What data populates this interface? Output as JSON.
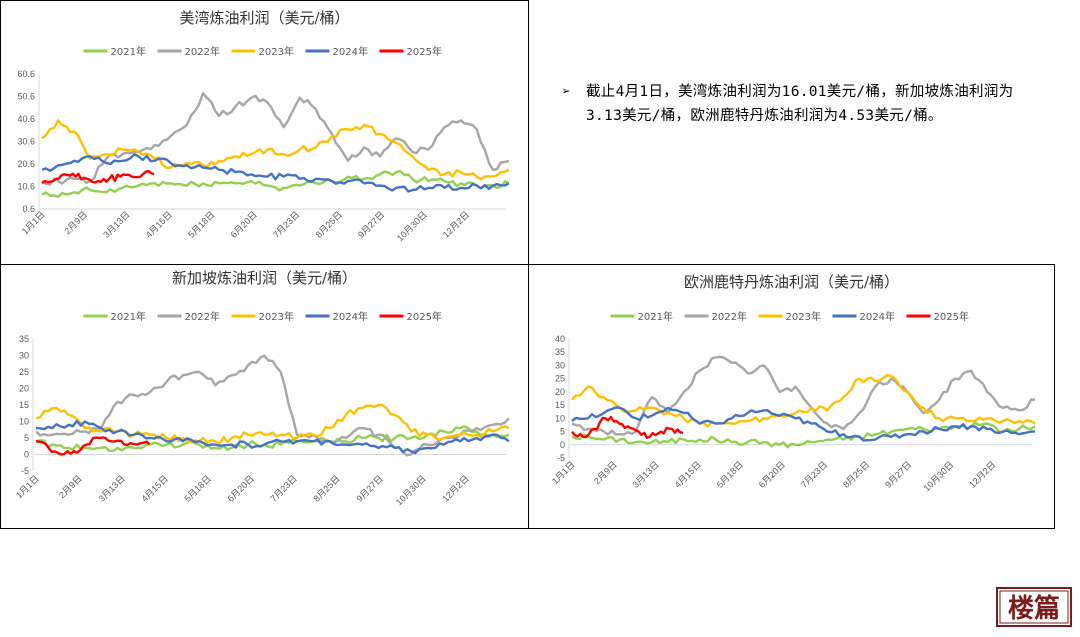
{
  "note": {
    "bullet": "➢",
    "text": "截止4月1日，美湾炼油利润为16.01美元/桶，新加坡炼油利润为3.13美元/桶，欧洲鹿特丹炼油利润为4.53美元/桶。"
  },
  "logo": {
    "text": "楼篇"
  },
  "chart_data": [
    {
      "id": "us",
      "type": "line",
      "title": "美湾炼油利润（美元/桶）",
      "x_tick_labels": [
        "1月1日",
        "2月9日",
        "3月13日",
        "4月15日",
        "5月18日",
        "6月20日",
        "7月23日",
        "8月25日",
        "9月27日",
        "10月30日",
        "12月2日"
      ],
      "y_ticks": [
        "0.6",
        "10.6",
        "20.6",
        "30.6",
        "40.6",
        "50.6",
        "60.6"
      ],
      "ylim": [
        0.6,
        60.6
      ],
      "series": [
        {
          "name": "2021年",
          "color": "#92D050",
          "values": [
            7,
            6,
            8,
            9,
            8,
            10,
            11,
            12,
            12,
            11,
            12,
            12,
            12,
            13,
            11,
            10,
            11,
            12,
            13,
            15,
            14,
            16,
            17,
            14,
            13,
            13,
            12,
            11,
            11,
            12
          ]
        },
        {
          "name": "2022年",
          "color": "#A6A6A6",
          "values": [
            13,
            13,
            14,
            13,
            23,
            25,
            26,
            29,
            33,
            38,
            52,
            42,
            46,
            50,
            48,
            37,
            50,
            45,
            34,
            22,
            28,
            24,
            32,
            26,
            27,
            37,
            40,
            36,
            18,
            22
          ]
        },
        {
          "name": "2023年",
          "color": "#FFC000",
          "values": [
            32,
            40,
            35,
            23,
            25,
            27,
            26,
            23,
            19,
            21,
            20,
            22,
            24,
            25,
            27,
            25,
            27,
            28,
            33,
            36,
            38,
            34,
            30,
            24,
            18,
            16,
            17,
            15,
            15,
            18
          ]
        },
        {
          "name": "2024年",
          "color": "#4472C4",
          "values": [
            18,
            20,
            22,
            24,
            21,
            22,
            24,
            22,
            21,
            20,
            19,
            18,
            17,
            16,
            15,
            15,
            14,
            14,
            13,
            13,
            12,
            11,
            10,
            9,
            10,
            10,
            10,
            11,
            11,
            12
          ]
        },
        {
          "name": "2025年",
          "color": "#FF0000",
          "values": [
            12,
            13,
            16,
            15,
            14,
            13,
            14,
            15,
            15,
            16,
            16.01
          ]
        }
      ]
    },
    {
      "id": "sg",
      "type": "line",
      "title": "新加坡炼油利润（美元/桶）",
      "x_tick_labels": [
        "1月1日",
        "2月9日",
        "3月13日",
        "4月15日",
        "5月18日",
        "6月20日",
        "7月23日",
        "8月25日",
        "9月27日",
        "10月30日",
        "12月2日"
      ],
      "y_ticks": [
        "-5",
        "0",
        "5",
        "10",
        "15",
        "20",
        "25",
        "30",
        "35"
      ],
      "ylim": [
        -5,
        35
      ],
      "series": [
        {
          "name": "2021年",
          "color": "#92D050",
          "values": [
            4,
            3,
            2,
            2,
            2,
            2,
            2,
            3,
            3,
            3,
            3,
            2,
            2,
            3,
            3,
            3,
            4,
            4,
            4,
            4,
            5,
            5,
            5,
            5,
            6,
            7,
            8,
            7,
            6,
            6
          ]
        },
        {
          "name": "2022年",
          "color": "#A6A6A6",
          "values": [
            7,
            6,
            6,
            7,
            8,
            16,
            18,
            19,
            22,
            24,
            25,
            21,
            24,
            27,
            30,
            25,
            6,
            6,
            4,
            5,
            8,
            6,
            2,
            0,
            3,
            5,
            6,
            8,
            9,
            11
          ]
        },
        {
          "name": "2023年",
          "color": "#FFC000",
          "values": [
            11,
            14,
            12,
            8,
            7,
            7,
            6,
            6,
            5,
            5,
            4,
            4,
            5,
            6,
            6,
            6,
            5,
            6,
            8,
            12,
            14,
            15,
            12,
            7,
            6,
            5,
            6,
            6,
            7,
            8
          ]
        },
        {
          "name": "2024年",
          "color": "#4472C4",
          "values": [
            8,
            8,
            9,
            10,
            8,
            7,
            6,
            5,
            4,
            4,
            4,
            3,
            3,
            3,
            3,
            4,
            4,
            4,
            4,
            3,
            3,
            2,
            2,
            1,
            2,
            3,
            4,
            5,
            6,
            4
          ]
        },
        {
          "name": "2025年",
          "color": "#FF0000",
          "values": [
            4,
            2,
            0,
            1,
            3,
            5,
            4,
            3,
            3,
            3.13
          ]
        }
      ]
    },
    {
      "id": "eu",
      "type": "line",
      "title": "欧洲鹿特丹炼油利润（美元/桶）",
      "x_tick_labels": [
        "1月1日",
        "2月9日",
        "3月13日",
        "4月15日",
        "5月18日",
        "6月20日",
        "7月23日",
        "8月25日",
        "9月27日",
        "10月30日",
        "12月2日"
      ],
      "y_ticks": [
        "-5",
        "0",
        "5",
        "10",
        "15",
        "20",
        "25",
        "30",
        "35",
        "40"
      ],
      "ylim": [
        -5,
        40
      ],
      "series": [
        {
          "name": "2021年",
          "color": "#92D050",
          "values": [
            3,
            3,
            2,
            2,
            1,
            1,
            1,
            2,
            2,
            2,
            1,
            1,
            1,
            0,
            0,
            1,
            2,
            2,
            3,
            4,
            5,
            6,
            6,
            6,
            7,
            7,
            8,
            5,
            6,
            7
          ]
        },
        {
          "name": "2022年",
          "color": "#A6A6A6",
          "values": [
            8,
            6,
            5,
            4,
            5,
            18,
            12,
            20,
            28,
            33,
            31,
            27,
            30,
            20,
            22,
            14,
            8,
            6,
            12,
            22,
            25,
            20,
            12,
            17,
            25,
            28,
            20,
            14,
            13,
            17
          ]
        },
        {
          "name": "2023年",
          "color": "#FFC000",
          "values": [
            17,
            22,
            18,
            14,
            13,
            14,
            12,
            10,
            8,
            8,
            8,
            9,
            10,
            11,
            12,
            14,
            13,
            18,
            25,
            24,
            26,
            20,
            14,
            10,
            10,
            9,
            10,
            9,
            9,
            8
          ]
        },
        {
          "name": "2024年",
          "color": "#4472C4",
          "values": [
            9,
            10,
            12,
            14,
            10,
            11,
            14,
            12,
            8,
            8,
            10,
            12,
            13,
            11,
            10,
            8,
            5,
            4,
            3,
            2,
            3,
            4,
            5,
            6,
            7,
            7,
            6,
            5,
            4,
            5
          ]
        },
        {
          "name": "2025年",
          "color": "#FF0000",
          "values": [
            5,
            3,
            6,
            10,
            9,
            7,
            5,
            3,
            5,
            6,
            4.53
          ]
        }
      ]
    }
  ]
}
